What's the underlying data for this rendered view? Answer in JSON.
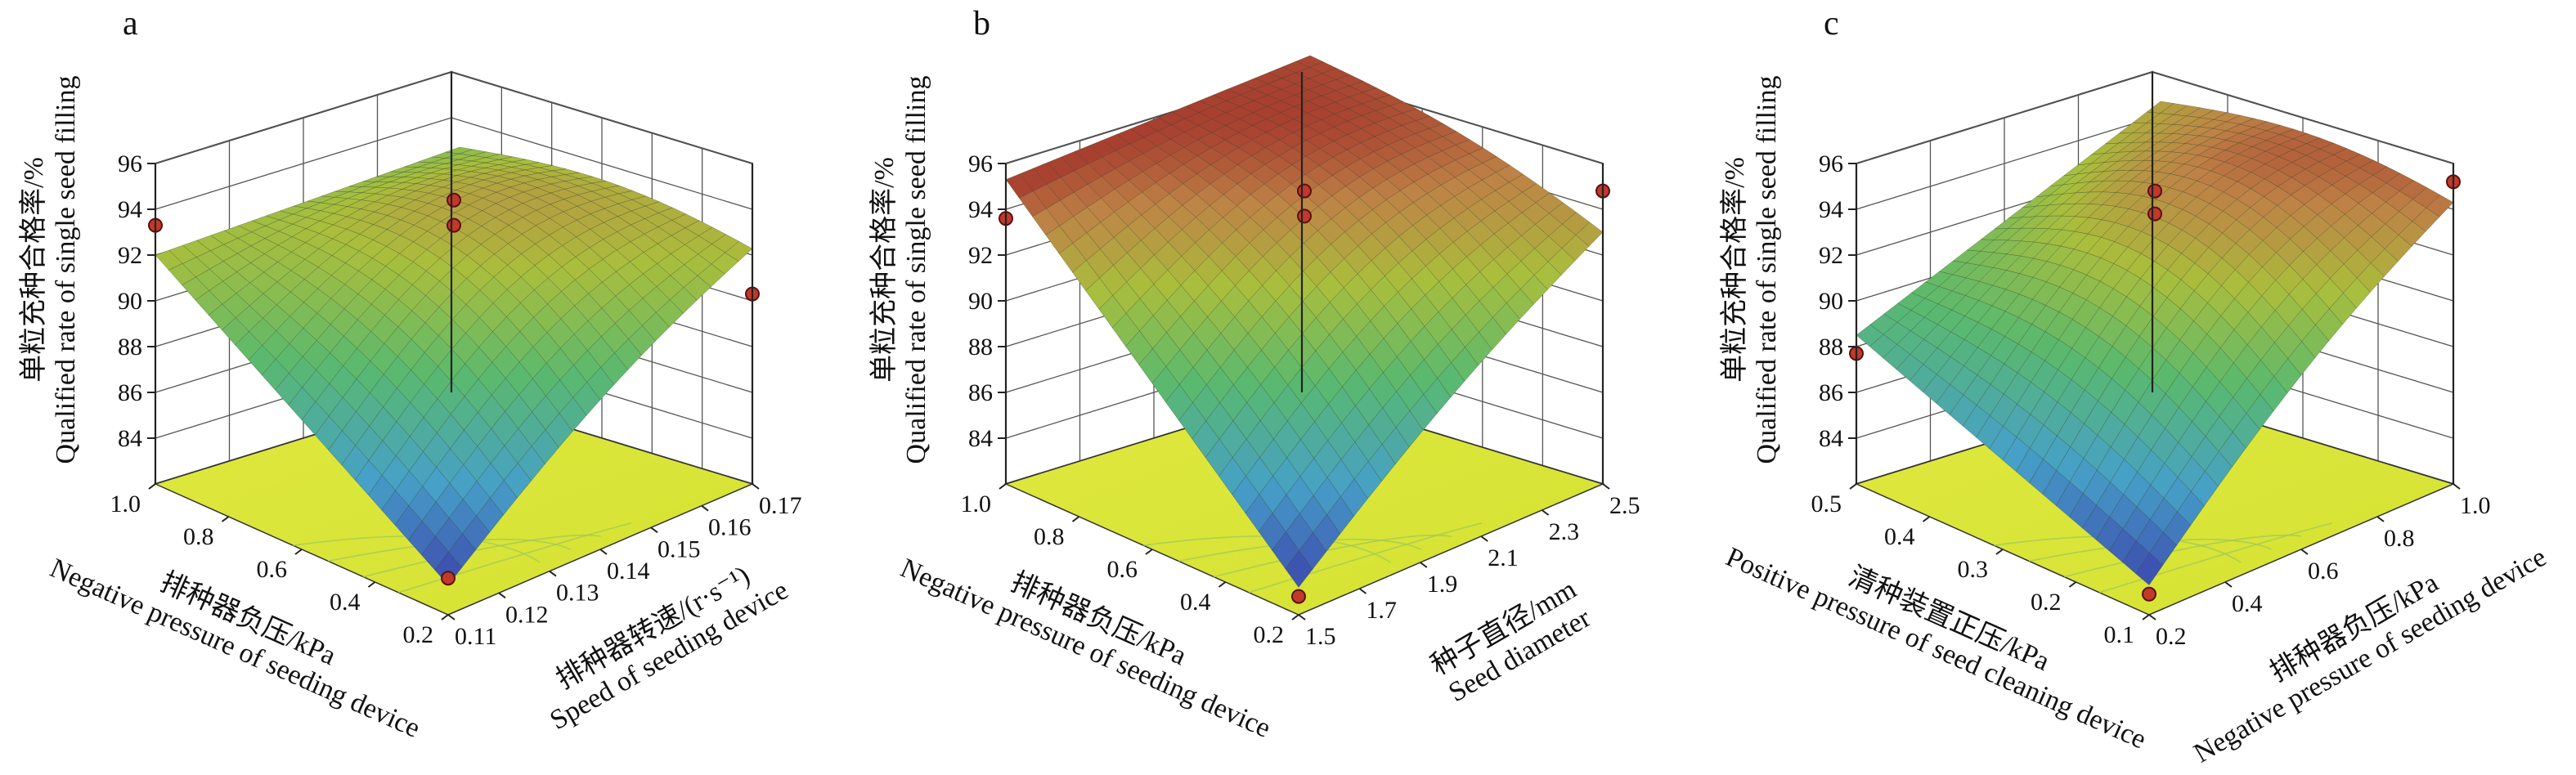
{
  "figure": {
    "panels": [
      "a",
      "b",
      "c"
    ]
  },
  "chart_data": [
    {
      "type": "surface",
      "panel_label": "a",
      "zlabel": "单粒充种合格率/%\nQualified rate of single seed filling",
      "zticks": [
        "84",
        "86",
        "88",
        "90",
        "92",
        "94",
        "96"
      ],
      "zlim": [
        82,
        96
      ],
      "x_axis": {
        "label": "排种器负压/kPa\nNegative pressure of seeding device",
        "ticks": [
          "1.0",
          "0.8",
          "0.6",
          "0.4",
          "0.2"
        ],
        "range": [
          1.0,
          0.2
        ]
      },
      "y_axis": {
        "label": "排种器转速/(r·s⁻¹)\nSpeed of seeding device",
        "ticks": [
          "0.11",
          "0.12",
          "0.13",
          "0.14",
          "0.15",
          "0.16",
          "0.17"
        ],
        "range": [
          0.11,
          0.17
        ]
      },
      "surface": {
        "corner_values": {
          "x_left_y_front": 92.0,
          "x_left_y_back": 91.0,
          "x_right_y_front": 83.3,
          "x_right_y_back": 92.0
        },
        "peak": 94.8
      },
      "observed_points": [
        {
          "x": 1.0,
          "y": 0.11,
          "z": 93.3
        },
        {
          "x": 0.6,
          "y": 0.14,
          "z": 94.4
        },
        {
          "x": 0.6,
          "y": 0.14,
          "z": 93.3
        },
        {
          "x": 0.2,
          "y": 0.17,
          "z": 90.3
        },
        {
          "x": 0.2,
          "y": 0.11,
          "z": 83.6
        }
      ],
      "contour_color": "#d8e83a"
    },
    {
      "type": "surface",
      "panel_label": "b",
      "zlabel": "单粒充种合格率/%\nQualified rate of single seed filling",
      "zticks": [
        "84",
        "86",
        "88",
        "90",
        "92",
        "94",
        "96"
      ],
      "zlim": [
        82,
        96
      ],
      "x_axis": {
        "label": "排种器负压/kPa\nNegative pressure of seeding device",
        "ticks": [
          "1.0",
          "0.8",
          "0.6",
          "0.4",
          "0.2"
        ],
        "range": [
          1.0,
          0.2
        ]
      },
      "y_axis": {
        "label": "种子直径/mm\nSeed diameter",
        "ticks": [
          "1.5",
          "1.7",
          "1.9",
          "2.1",
          "2.3",
          "2.5"
        ],
        "range": [
          1.5,
          2.5
        ]
      },
      "surface": {
        "corner_values": {
          "x_left_y_front": 95.3,
          "x_left_y_back": 95.0,
          "x_right_y_front": 83.2,
          "x_right_y_back": 92.8
        },
        "peak": 95.4
      },
      "observed_points": [
        {
          "x": 1.0,
          "y": 1.5,
          "z": 93.6
        },
        {
          "x": 0.6,
          "y": 2.0,
          "z": 94.8
        },
        {
          "x": 0.6,
          "y": 2.0,
          "z": 93.7
        },
        {
          "x": 0.2,
          "y": 2.5,
          "z": 94.8
        },
        {
          "x": 0.2,
          "y": 1.5,
          "z": 82.8
        }
      ],
      "contour_color": "#d8e83a"
    },
    {
      "type": "surface",
      "panel_label": "c",
      "zlabel": "单粒充种合格率/%\nQualified rate of single seed filling",
      "zticks": [
        "84",
        "86",
        "88",
        "90",
        "92",
        "94",
        "96"
      ],
      "zlim": [
        82,
        96
      ],
      "x_axis": {
        "label": "清种装置正压/kPa\nPositive pressure of seed cleaning device",
        "ticks": [
          "0.5",
          "0.4",
          "0.3",
          "0.2",
          "0.1"
        ],
        "range": [
          0.5,
          0.1
        ]
      },
      "y_axis": {
        "label": "排种器负压/kPa\nNegative pressure of seeding device",
        "ticks": [
          "0.2",
          "0.4",
          "0.6",
          "0.8",
          "1.0"
        ],
        "range": [
          0.2,
          1.0
        ]
      },
      "surface": {
        "corner_values": {
          "x_left_y_front": 88.5,
          "x_left_y_back": 93.0,
          "x_right_y_front": 83.3,
          "x_right_y_back": 94.0
        },
        "peak": 95.4
      },
      "observed_points": [
        {
          "x": 0.5,
          "y": 0.2,
          "z": 87.7
        },
        {
          "x": 0.3,
          "y": 0.6,
          "z": 94.8
        },
        {
          "x": 0.3,
          "y": 0.6,
          "z": 93.8
        },
        {
          "x": 0.1,
          "y": 1.0,
          "z": 95.2
        },
        {
          "x": 0.1,
          "y": 0.2,
          "z": 82.9
        }
      ],
      "contour_color": "#d8e83a"
    }
  ]
}
